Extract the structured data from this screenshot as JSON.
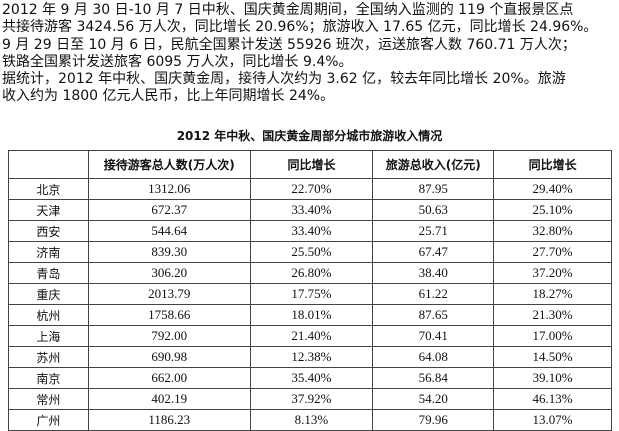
{
  "paragraph_lines": [
    "2012 年 9 月 30 日-10 月 7 日中秋、国庆黄金周期间，全国纳入监测的 119 个直报景区点",
    "共接待游客 3424.56 万人次，同比增长 20.96%；旅游收入 17.65 亿元，同比增长 24.96%。",
    "9 月 29 日至 10 月 6 日，民航全国累计发送 55926 班次，运送旅客人数 760.71 万人次；",
    "铁路全国累计发送旅客 6095 万人次，同比增长 9.4%。",
    "据统计，2012 年中秋、国庆黄金周，接待人次约为 3.62 亿，较去年同比增长 20%。旅游",
    "收入约为 1800 亿元人民币，比上年同期增长 24%。"
  ],
  "table": {
    "title": "2012 年中秋、国庆黄金周部分城市旅游收入情况",
    "headers": [
      "",
      "接待游客总人数(万人次)",
      "同比增长",
      "旅游总收入(亿元)",
      "同比增长"
    ],
    "rows": [
      [
        "北京",
        "1312.06",
        "22.70%",
        "87.95",
        "29.40%"
      ],
      [
        "天津",
        "672.37",
        "33.40%",
        "50.63",
        "25.10%"
      ],
      [
        "西安",
        "544.64",
        "33.40%",
        "25.71",
        "32.80%"
      ],
      [
        "济南",
        "839.30",
        "25.50%",
        "67.47",
        "27.70%"
      ],
      [
        "青岛",
        "306.20",
        "26.80%",
        "38.40",
        "37.20%"
      ],
      [
        "重庆",
        "2013.79",
        "17.75%",
        "61.22",
        "18.27%"
      ],
      [
        "杭州",
        "1758.66",
        "18.01%",
        "87.65",
        "21.30%"
      ],
      [
        "上海",
        "792.00",
        "21.40%",
        "70.41",
        "17.00%"
      ],
      [
        "苏州",
        "690.98",
        "12.38%",
        "64.08",
        "14.50%"
      ],
      [
        "南京",
        "662.00",
        "35.40%",
        "56.84",
        "39.10%"
      ],
      [
        "常州",
        "402.19",
        "37.92%",
        "54.20",
        "46.13%"
      ],
      [
        "广州",
        "1186.23",
        "8.13%",
        "79.96",
        "13.07%"
      ]
    ]
  }
}
